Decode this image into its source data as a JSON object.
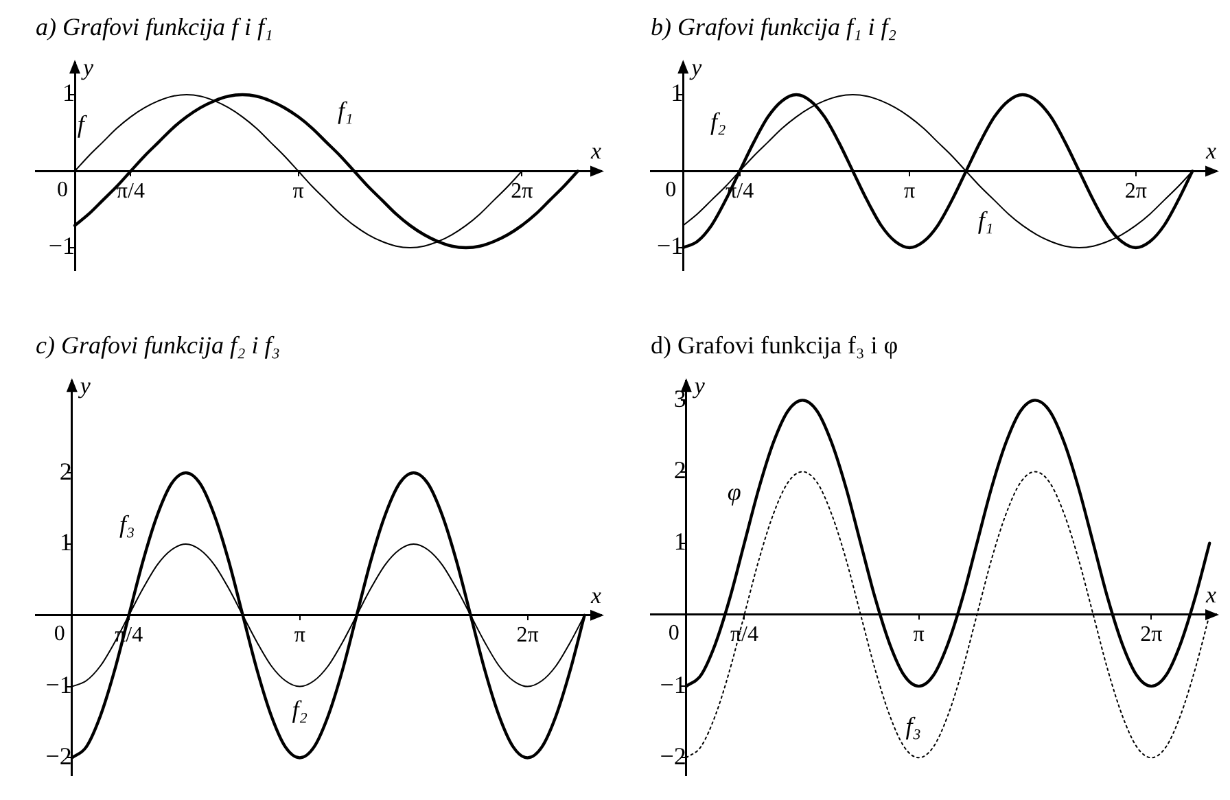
{
  "chart_data": [
    {
      "type": "line",
      "title": "a) Grafovi funkcija f i f₁",
      "xlabel": "x",
      "ylabel": "y",
      "marker": "none",
      "x": [
        0,
        0.196,
        0.393,
        0.589,
        0.785,
        0.982,
        1.178,
        1.374,
        1.571,
        1.767,
        1.963,
        2.16,
        2.356,
        2.553,
        2.749,
        2.945,
        3.142,
        3.338,
        3.534,
        3.731,
        3.927,
        4.123,
        4.32,
        4.516,
        4.712,
        4.909,
        5.105,
        5.301,
        5.498,
        5.694,
        5.89,
        6.087,
        6.283,
        6.48,
        6.676,
        6.872,
        7.069
      ],
      "xlim": [
        -0.55,
        7.4
      ],
      "ylim": [
        -1.3,
        1.42
      ],
      "xticks": [
        {
          "value": 0,
          "label": "0"
        },
        {
          "value": 0.785,
          "label": "π/4"
        },
        {
          "value": 3.142,
          "label": "π"
        },
        {
          "value": 6.283,
          "label": "2π"
        }
      ],
      "yticks": [
        -1,
        1
      ],
      "series": [
        {
          "name": "f",
          "color": "#000000",
          "line_style": "solid",
          "values": [
            0,
            0.2,
            0.38,
            0.56,
            0.71,
            0.83,
            0.92,
            0.98,
            1,
            0.98,
            0.92,
            0.83,
            0.71,
            0.56,
            0.38,
            0.2,
            0,
            -0.2,
            -0.38,
            -0.56,
            -0.71,
            -0.83,
            -0.92,
            -0.98,
            -1,
            -0.98,
            -0.92,
            -0.83,
            -0.71,
            -0.56,
            -0.38,
            -0.2,
            0,
            null,
            null,
            null,
            null
          ]
        },
        {
          "name": "f₁",
          "color": "#000000",
          "line_style": "solid",
          "values": [
            -0.71,
            -0.56,
            -0.38,
            -0.2,
            0,
            0.2,
            0.38,
            0.56,
            0.71,
            0.83,
            0.92,
            0.98,
            1,
            0.98,
            0.92,
            0.83,
            0.71,
            0.56,
            0.38,
            0.2,
            0,
            -0.2,
            -0.38,
            -0.56,
            -0.71,
            -0.83,
            -0.92,
            -0.98,
            -1,
            -0.98,
            -0.92,
            -0.83,
            -0.71,
            -0.56,
            -0.38,
            -0.2,
            0
          ]
        }
      ]
    },
    {
      "type": "line",
      "title": "b) Grafovi funkcija f₁ i f₂",
      "xlabel": "x",
      "ylabel": "y",
      "marker": "none",
      "x": [
        0,
        0.196,
        0.393,
        0.589,
        0.785,
        0.982,
        1.178,
        1.374,
        1.571,
        1.767,
        1.963,
        2.16,
        2.356,
        2.553,
        2.749,
        2.945,
        3.142,
        3.338,
        3.534,
        3.731,
        3.927,
        4.123,
        4.32,
        4.516,
        4.712,
        4.909,
        5.105,
        5.301,
        5.498,
        5.694,
        5.89,
        6.087,
        6.283,
        6.48,
        6.676,
        6.872,
        7.069
      ],
      "xlim": [
        -0.45,
        7.4
      ],
      "ylim": [
        -1.3,
        1.42
      ],
      "xticks": [
        {
          "value": 0,
          "label": "0"
        },
        {
          "value": 0.785,
          "label": "π/4"
        },
        {
          "value": 3.142,
          "label": "π"
        },
        {
          "value": 6.283,
          "label": "2π"
        }
      ],
      "yticks": [
        -1,
        1
      ],
      "series": [
        {
          "name": "f₁",
          "color": "#000000",
          "line_style": "solid",
          "values": [
            -0.71,
            -0.56,
            -0.38,
            -0.2,
            0,
            0.2,
            0.38,
            0.56,
            0.71,
            0.83,
            0.92,
            0.98,
            1,
            0.98,
            0.92,
            0.83,
            0.71,
            0.56,
            0.38,
            0.2,
            0,
            -0.2,
            -0.38,
            -0.56,
            -0.71,
            -0.83,
            -0.92,
            -0.98,
            -1,
            -0.98,
            -0.92,
            -0.83,
            -0.71,
            -0.56,
            -0.38,
            -0.2,
            0
          ]
        },
        {
          "name": "f₂",
          "color": "#000000",
          "line_style": "solid",
          "values": [
            -1,
            -0.92,
            -0.71,
            -0.38,
            0,
            0.38,
            0.71,
            0.92,
            1,
            0.92,
            0.71,
            0.38,
            0,
            -0.38,
            -0.71,
            -0.92,
            -1,
            -0.92,
            -0.71,
            -0.38,
            0,
            0.38,
            0.71,
            0.92,
            1,
            0.92,
            0.71,
            0.38,
            0,
            -0.38,
            -0.71,
            -0.92,
            -1,
            -0.92,
            -0.71,
            -0.38,
            0
          ]
        }
      ]
    },
    {
      "type": "line",
      "title": "c) Grafovi funkcija f₂ i f₃",
      "xlabel": "x",
      "ylabel": "y",
      "marker": "none",
      "x": [
        0,
        0.196,
        0.393,
        0.589,
        0.785,
        0.982,
        1.178,
        1.374,
        1.571,
        1.767,
        1.963,
        2.16,
        2.356,
        2.553,
        2.749,
        2.945,
        3.142,
        3.338,
        3.534,
        3.731,
        3.927,
        4.123,
        4.32,
        4.516,
        4.712,
        4.909,
        5.105,
        5.301,
        5.498,
        5.694,
        5.89,
        6.087,
        6.283,
        6.48,
        6.676,
        6.872,
        7.069
      ],
      "xlim": [
        -0.5,
        7.3
      ],
      "ylim": [
        -2.25,
        3.29
      ],
      "xticks": [
        {
          "value": 0,
          "label": "0"
        },
        {
          "value": 0.785,
          "label": "π/4"
        },
        {
          "value": 3.142,
          "label": "π"
        },
        {
          "value": 6.283,
          "label": "2π"
        }
      ],
      "yticks": [
        -2,
        -1,
        1,
        2
      ],
      "series": [
        {
          "name": "f₂",
          "color": "#000000",
          "line_style": "solid",
          "values": [
            -1,
            -0.92,
            -0.71,
            -0.38,
            0,
            0.38,
            0.71,
            0.92,
            1,
            0.92,
            0.71,
            0.38,
            0,
            -0.38,
            -0.71,
            -0.92,
            -1,
            -0.92,
            -0.71,
            -0.38,
            0,
            0.38,
            0.71,
            0.92,
            1,
            0.92,
            0.71,
            0.38,
            0,
            -0.38,
            -0.71,
            -0.92,
            -1,
            -0.92,
            -0.71,
            -0.38,
            0
          ]
        },
        {
          "name": "f₃",
          "color": "#000000",
          "line_style": "solid",
          "values": [
            -2,
            -1.85,
            -1.41,
            -0.77,
            0,
            0.77,
            1.41,
            1.85,
            2,
            1.85,
            1.41,
            0.77,
            0,
            -0.77,
            -1.41,
            -1.85,
            -2,
            -1.85,
            -1.41,
            -0.77,
            0,
            0.77,
            1.41,
            1.85,
            2,
            1.85,
            1.41,
            0.77,
            0,
            -0.77,
            -1.41,
            -1.85,
            -2,
            -1.85,
            -1.41,
            -0.77,
            0
          ]
        }
      ]
    },
    {
      "type": "line",
      "title": "d) Grafovi funkcija f₃ i φ",
      "xlabel": "x",
      "ylabel": "y",
      "marker": "none",
      "x": [
        0,
        0.196,
        0.393,
        0.589,
        0.785,
        0.982,
        1.178,
        1.374,
        1.571,
        1.767,
        1.963,
        2.16,
        2.356,
        2.553,
        2.749,
        2.945,
        3.142,
        3.338,
        3.534,
        3.731,
        3.927,
        4.123,
        4.32,
        4.516,
        4.712,
        4.909,
        5.105,
        5.301,
        5.498,
        5.694,
        5.89,
        6.087,
        6.283,
        6.48,
        6.676,
        6.872,
        7.069
      ],
      "xlim": [
        -0.48,
        7.16
      ],
      "ylim": [
        -2.25,
        3.27
      ],
      "xticks": [
        {
          "value": 0,
          "label": "0"
        },
        {
          "value": 0.785,
          "label": "π/4"
        },
        {
          "value": 3.142,
          "label": "π"
        },
        {
          "value": 6.283,
          "label": "2π"
        }
      ],
      "yticks": [
        -2,
        -1,
        1,
        2,
        3
      ],
      "series": [
        {
          "name": "f₃",
          "color": "#000000",
          "line_style": "dotted",
          "values": [
            -2,
            -1.85,
            -1.41,
            -0.77,
            0,
            0.77,
            1.41,
            1.85,
            2,
            1.85,
            1.41,
            0.77,
            0,
            -0.77,
            -1.41,
            -1.85,
            -2,
            -1.85,
            -1.41,
            -0.77,
            0,
            0.77,
            1.41,
            1.85,
            2,
            1.85,
            1.41,
            0.77,
            0,
            -0.77,
            -1.41,
            -1.85,
            -2,
            -1.85,
            -1.41,
            -0.77,
            0
          ]
        },
        {
          "name": "φ",
          "color": "#000000",
          "line_style": "solid",
          "values": [
            -1,
            -0.85,
            -0.41,
            0.23,
            1,
            1.77,
            2.41,
            2.85,
            3,
            2.85,
            2.41,
            1.77,
            1,
            0.23,
            -0.41,
            -0.85,
            -1,
            -0.85,
            -0.41,
            0.23,
            1,
            1.77,
            2.41,
            2.85,
            3,
            2.85,
            2.41,
            1.77,
            1,
            0.23,
            -0.41,
            -0.85,
            -1,
            -0.85,
            -0.41,
            0.23,
            1
          ]
        }
      ]
    }
  ]
}
